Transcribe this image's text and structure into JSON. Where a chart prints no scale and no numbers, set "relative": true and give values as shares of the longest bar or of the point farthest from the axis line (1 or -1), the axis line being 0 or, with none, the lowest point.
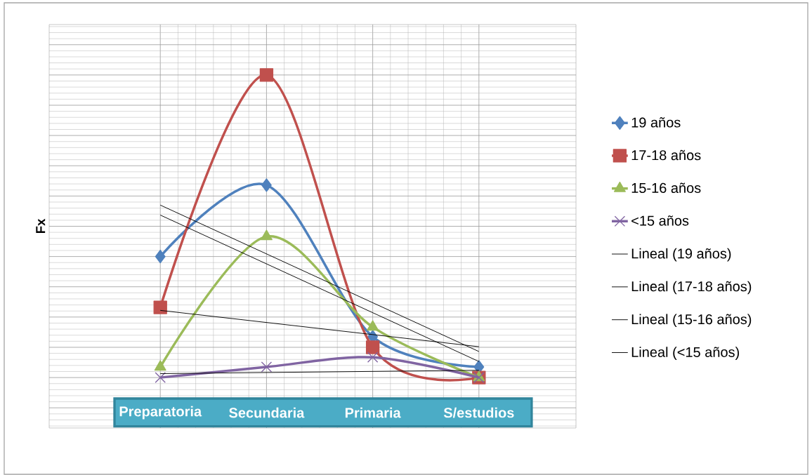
{
  "chart_data": {
    "type": "line",
    "relative": true,
    "ylabel": "Fx",
    "categories": [
      "Preparatoria",
      "Secundaria",
      "Primaria",
      "S/estudios"
    ],
    "series": [
      {
        "name": "19 años",
        "color": "#4f81bd",
        "marker": "diamond",
        "values": [
          0.4,
          0.636,
          0.135,
          0.035
        ]
      },
      {
        "name": "17-18 años",
        "color": "#c0504d",
        "marker": "square",
        "values": [
          0.232,
          1,
          0.1,
          0
        ]
      },
      {
        "name": "15-16 años",
        "color": "#9bbb59",
        "marker": "triangle",
        "values": [
          0.035,
          0.466,
          0.167,
          0
        ]
      },
      {
        "name": "<15 años",
        "color": "#8064a2",
        "marker": "cross",
        "values": [
          0,
          0.035,
          0.067,
          0
        ]
      },
      {
        "name": "Lineal (19 años)",
        "type": "line",
        "color": "#000000",
        "marker": "none",
        "values": [
          0.537,
          null,
          null,
          0.053
        ]
      },
      {
        "name": "Lineal (17-18 años)",
        "type": "line",
        "color": "#000000",
        "marker": "none",
        "values": [
          0.57,
          null,
          null,
          0.086
        ]
      },
      {
        "name": "Lineal (15-16 años)",
        "type": "line",
        "color": "#000000",
        "marker": "none",
        "values": [
          0.222,
          null,
          null,
          0.102
        ]
      },
      {
        "name": "Lineal (<15 años)",
        "type": "line",
        "color": "#000000",
        "marker": "none",
        "values": [
          0.013,
          null,
          null,
          0.024
        ]
      }
    ],
    "grid": true,
    "legend": "right",
    "line_style": "solid"
  }
}
